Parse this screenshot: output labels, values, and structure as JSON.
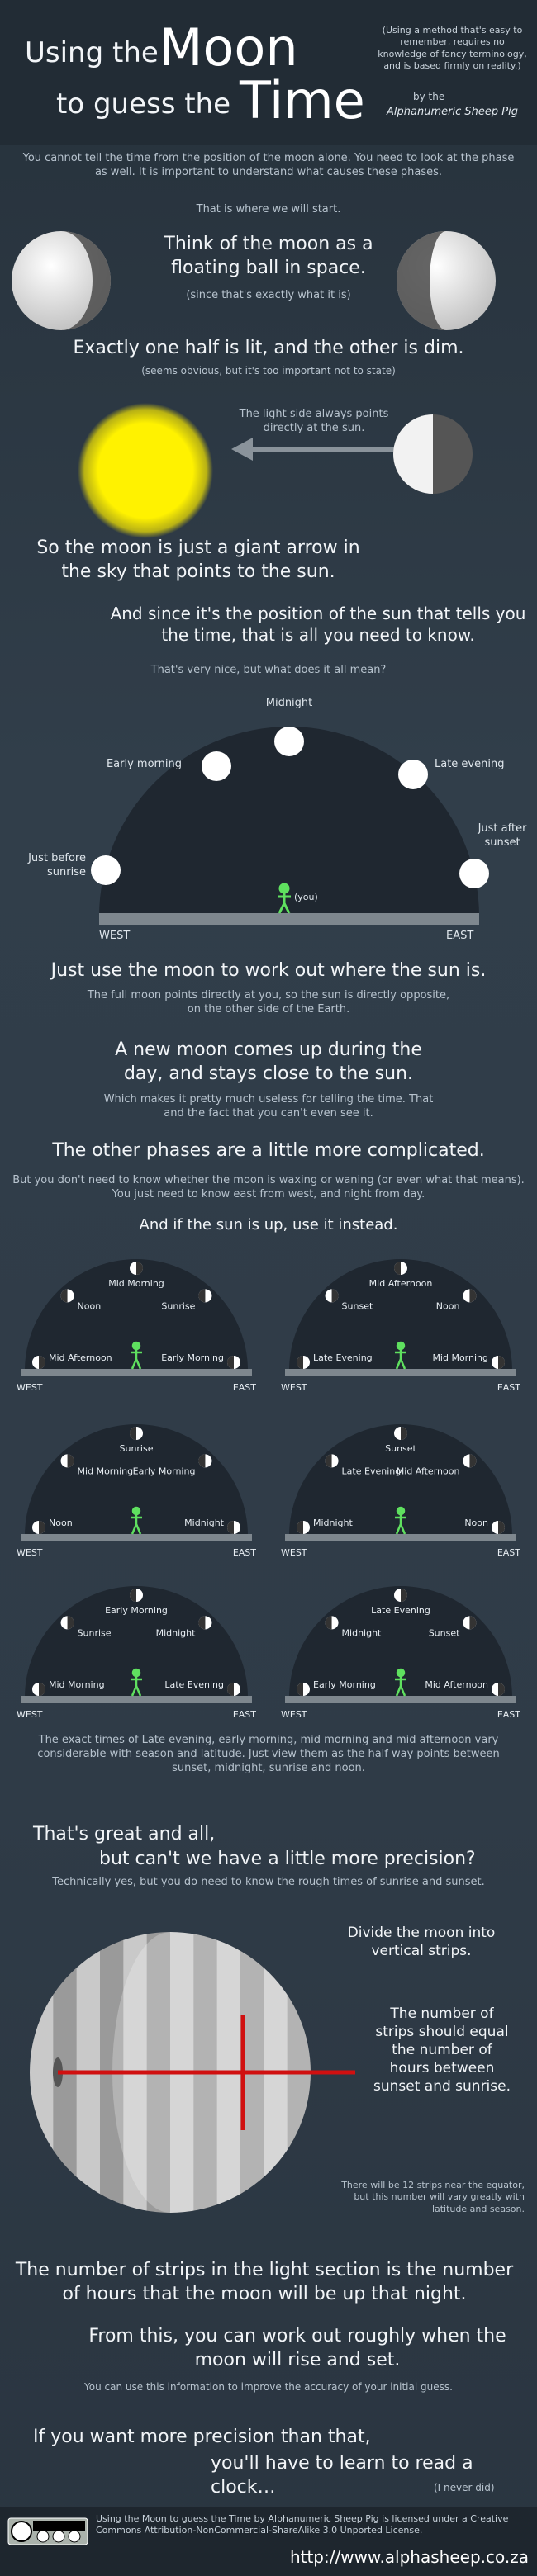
{
  "header": {
    "title_1": "Using the",
    "title_2": "Moon",
    "title_3": "to guess the",
    "title_4": "Time",
    "note": "(Using a method that's easy to remember, requires no knowledge of fancy terminology, and is based firmly on reality.)",
    "byline": "by the",
    "author": "Alphanumeric Sheep Pig"
  },
  "intro": {
    "text": "You cannot tell the time from the position of the moon alone. You need to look at the phase as well. It is important to understand what causes these phases.",
    "start": "That is where we will start."
  },
  "ball": {
    "heading": "Think of the moon as a floating ball in space.",
    "note": "(since that's exactly what it is)"
  },
  "half": {
    "heading": "Exactly one half is lit, and the other is dim.",
    "note": "(seems obvious, but it's too important not to state)"
  },
  "arrow": {
    "caption": "The light side always points directly at the sun.",
    "summary": "So the moon is just a giant arrow in the sky that points to the sun.",
    "sun_time": "And since it's the position of the sun that tells you the time, that is all you need to know.",
    "question": "That's very nice, but what does it all mean?"
  },
  "sky_diagram": {
    "labels": [
      "Midnight",
      "Early morning",
      "Late evening",
      "Just before sunrise",
      "Just after sunset"
    ],
    "observer": "(you)",
    "west": "WEST",
    "east": "EAST"
  },
  "full_moon": {
    "heading": "Just use the moon to work out where the sun is.",
    "text": "The full moon points directly at you, so the sun is directly opposite, on the other side of the Earth."
  },
  "new_moon": {
    "heading": "A new moon comes up during the day, and stays close to the sun.",
    "text": "Which makes it pretty much useless for telling the time. That and the fact that you can't even see it."
  },
  "other_phases": {
    "heading": "The other phases are a little more complicated.",
    "text": "But you don't need to know whether the moon is waxing or waning (or even what that means). You just need to know east from west, and night from day.",
    "sun_up": "And if the sun is up, use it instead."
  },
  "phase_diagrams": [
    {
      "labels": [
        "Noon",
        "Mid Morning",
        "Sunrise",
        "Mid Afternoon",
        "Early Morning"
      ]
    },
    {
      "labels": [
        "Sunset",
        "Mid Afternoon",
        "Noon",
        "Late Evening",
        "Mid Morning"
      ]
    },
    {
      "labels": [
        "Sunrise",
        "Mid Morning",
        "Early Morning",
        "Noon",
        "Midnight"
      ]
    },
    {
      "labels": [
        "Sunset",
        "Late Evening",
        "Mid Afternoon",
        "Midnight",
        "Noon"
      ]
    },
    {
      "labels": [
        "Early Morning",
        "Sunrise",
        "Midnight",
        "Mid Morning",
        "Late Evening"
      ]
    },
    {
      "labels": [
        "Late Evening",
        "Midnight",
        "Sunset",
        "Early Morning",
        "Mid Afternoon"
      ]
    }
  ],
  "phase_note": "The exact times of Late evening, early morning, mid morning and mid afternoon vary considerable with season and latitude. Just view them as the half way points between sunset, midnight, sunrise and noon.",
  "precision": {
    "heading_1": "That's great and all,",
    "heading_2": "but can't we have a little more precision?",
    "text": "Technically yes, but you do need to know the rough times of sunrise and sunset."
  },
  "strips": {
    "divide": "Divide the moon into vertical strips.",
    "count": "The number of strips should equal the number of hours between sunset and sunrise.",
    "note": "There will be 12 strips near the equator, but this number will vary greatly with latitude and season."
  },
  "result": {
    "heading": "The number of strips in the light section is the number of hours that the moon will be up that night.",
    "rise_set": "From this, you can work out roughly when the moon will rise and set.",
    "accuracy": "You can use this information to improve the accuracy of your initial guess."
  },
  "closing": {
    "line_1": "If you want more precision than that,",
    "line_2": "you'll have to learn to read a clock…",
    "aside": "(I never did)"
  },
  "footer": {
    "license": "Using the Moon to guess the Time by Alphanumeric Sheep Pig is licensed under a Creative Commons Attribution-NonCommercial-ShareAlike 3.0 Unported License.",
    "url": "http://www.alphasheep.co.za"
  }
}
